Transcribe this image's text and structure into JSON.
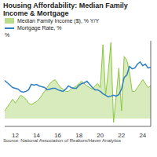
{
  "chart_data": {
    "type": "line",
    "title": "Housing Affordability: Median Family Income & Mortgage",
    "ylabel": "%",
    "source": "Source: National Association of Realtors/Haver Analytics",
    "categories": [
      null,
      null,
      null,
      null,
      "12",
      null,
      null,
      null,
      null,
      null,
      null,
      null,
      "14",
      null,
      null,
      null,
      null,
      null,
      null,
      null,
      "16",
      null,
      null,
      null,
      null,
      null,
      null,
      null,
      "18",
      null,
      null,
      null,
      null,
      null,
      null,
      null,
      "20",
      null,
      null,
      null,
      null,
      null,
      null,
      null,
      "22",
      null,
      null,
      null,
      null,
      null,
      null,
      null,
      "24",
      null,
      null,
      null
    ],
    "series": [
      {
        "name": "Median Family Income ($), % Y/Y",
        "color": "#8cc63f",
        "type": "area",
        "values": [
          1.0,
          1.5,
          2.0,
          2.5,
          2.0,
          2.5,
          3.0,
          2.8,
          2.5,
          2.0,
          1.8,
          2.0,
          2.2,
          2.5,
          3.0,
          3.5,
          4.0,
          4.5,
          4.8,
          5.0,
          4.5,
          4.0,
          3.8,
          3.5,
          3.5,
          3.8,
          4.0,
          4.2,
          4.5,
          4.8,
          4.5,
          4.2,
          4.0,
          3.8,
          4.2,
          4.5,
          4.0,
          9.5,
          3.0,
          6.0,
          9.8,
          -0.5,
          3.0,
          6.5,
          1.0,
          8.0,
          7.5,
          6.0,
          3.5,
          3.5,
          4.0,
          4.5,
          5.0,
          4.5,
          4.0,
          4.2
        ]
      },
      {
        "name": "Mortgage Rate, %",
        "color": "#2f7fc1",
        "type": "line",
        "values": [
          4.9,
          4.6,
          4.3,
          4.0,
          3.9,
          3.8,
          3.5,
          3.4,
          3.5,
          3.7,
          4.4,
          4.3,
          4.4,
          4.2,
          4.1,
          4.0,
          3.7,
          3.8,
          3.9,
          3.9,
          3.7,
          3.6,
          3.5,
          3.8,
          4.2,
          4.0,
          3.9,
          3.9,
          4.3,
          4.5,
          4.6,
          4.8,
          4.4,
          4.0,
          3.7,
          3.7,
          3.5,
          3.2,
          3.0,
          2.8,
          2.9,
          3.0,
          2.9,
          3.1,
          3.8,
          5.3,
          5.6,
          6.7,
          6.4,
          6.5,
          7.0,
          7.3,
          6.8,
          7.0,
          6.5,
          6.6
        ]
      }
    ],
    "ylim": [
      -1,
      10
    ],
    "tick_labels": "x",
    "grid": false
  }
}
